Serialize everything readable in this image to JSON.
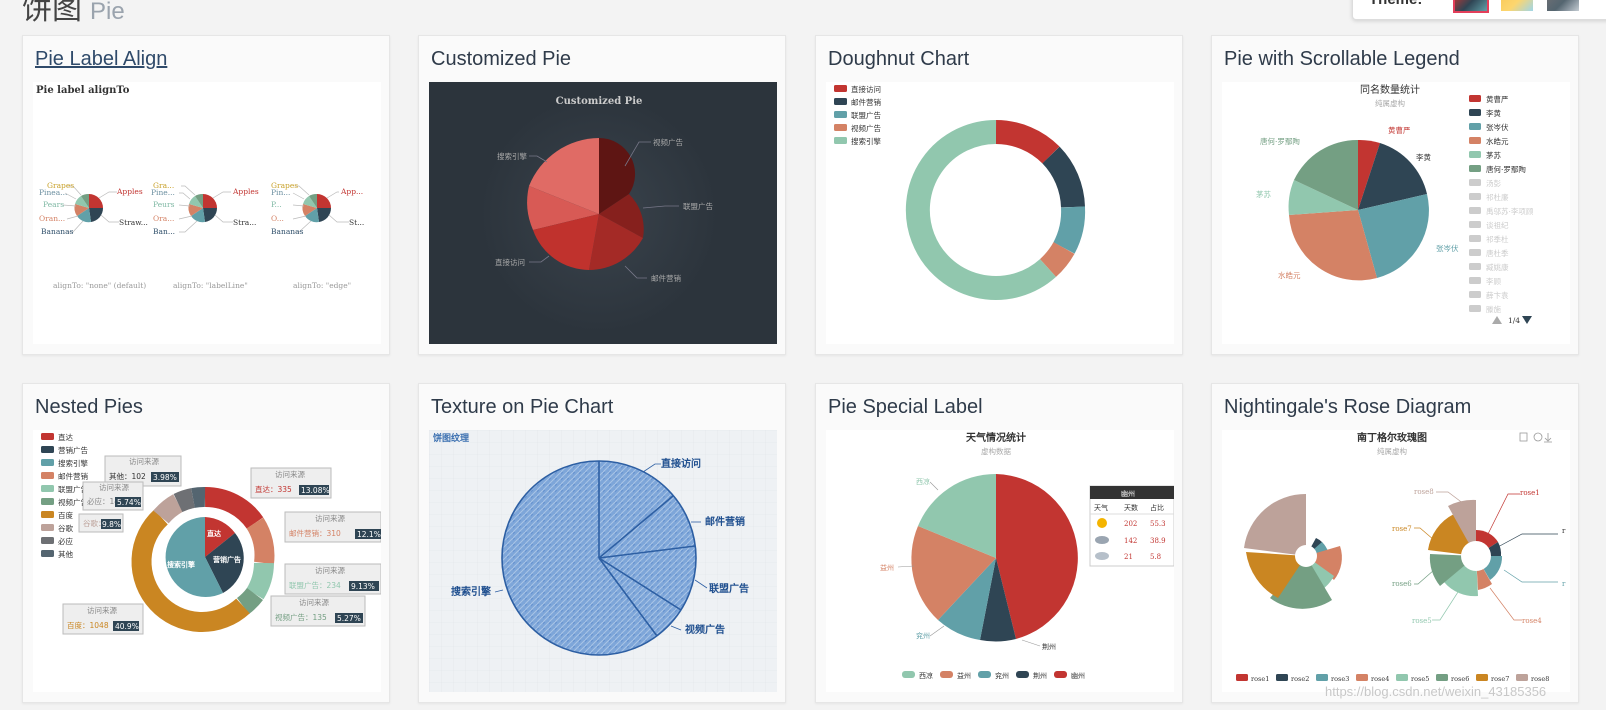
{
  "header": {
    "title_cn": "饼图",
    "title_en": "Pie"
  },
  "theme": {
    "label": "Theme:",
    "swatches": [
      "#2f4554",
      "#fac858",
      "#6e7074"
    ]
  },
  "cards": [
    {
      "title": "Pie Label Align",
      "thumb": {
        "title": "Pie label alignTo",
        "labels": [
          "Grapes",
          "Pinea...",
          "Pears",
          "Oran...",
          "Bananas",
          "Apples",
          "Straw...",
          "Gra...",
          "Pine...",
          "Peurs",
          "Ora...",
          "Ban...",
          "Apples",
          "Stra...",
          "Grapes",
          "Pin...",
          "P...",
          "O...",
          "Bananas",
          "App...",
          "St..."
        ],
        "captions": [
          "alignTo: \"none\" (default)",
          "alignTo: \"labelLine\"",
          "alignTo: \"edge\""
        ]
      }
    },
    {
      "title": "Customized Pie",
      "thumb": {
        "title": "Customized Pie",
        "labels": [
          "搜索引擎",
          "视频广告",
          "联盟广告",
          "直接访问",
          "邮件营销"
        ]
      }
    },
    {
      "title": "Doughnut Chart",
      "thumb": {
        "legend": [
          "直接访问",
          "邮件营销",
          "联盟广告",
          "视频广告",
          "搜索引擎"
        ]
      }
    },
    {
      "title": "Pie with Scrollable Legend",
      "thumb": {
        "title": "同名数量统计",
        "subtitle": "纯属虚构",
        "labels": [
          "黄曹严",
          "李黄",
          "张岑伏",
          "水皓元",
          "茅苏",
          "唐何·罗鄢陶"
        ],
        "legend": [
          "黄曹严",
          "李黄",
          "张岑伏",
          "水皓元",
          "茅苏",
          "唐何·罗鄢陶",
          "汤彭",
          "祁杜廉",
          "禹邬苏·李项顾",
          "谈祖纪",
          "祁季杜",
          "唐杜季",
          "臧姚康",
          "李顾",
          "薛卞袁",
          "滕施"
        ],
        "pager": "1/4"
      }
    },
    {
      "title": "Nested Pies",
      "thumb": {
        "legend": [
          "直达",
          "营销广告",
          "搜索引擎",
          "邮件营销",
          "联盟广告",
          "视频广告",
          "百度",
          "谷歌",
          "必应",
          "其他"
        ],
        "inner_labels": [
          "直达",
          "营销广告",
          "搜索引擎"
        ],
        "tips": [
          {
            "head": "访问来源",
            "text": "其他：102",
            "pct": "3.98%"
          },
          {
            "head": "访问来源",
            "text": "直达：335",
            "pct": "13.08%"
          },
          {
            "head": "访问来源",
            "text": "必应：147",
            "pct": "5.74%"
          },
          {
            "head": "访问来源",
            "text": "邮件营销：310",
            "pct": "12.1%"
          },
          {
            "head": "",
            "text": "谷歌：251",
            "pct": "9.8%"
          },
          {
            "head": "访问来源",
            "text": "联盟广告：234",
            "pct": "9.13%"
          },
          {
            "head": "访问来源",
            "text": "视频广告：135",
            "pct": "5.27%"
          },
          {
            "head": "访问来源",
            "text": "百度：1048",
            "pct": "40.9%"
          }
        ]
      }
    },
    {
      "title": "Texture on Pie Chart",
      "thumb": {
        "title": "饼图纹理",
        "labels": [
          "直接访问",
          "邮件营销",
          "联盟广告",
          "视频广告",
          "搜索引擎"
        ]
      }
    },
    {
      "title": "Pie Special Label",
      "thumb": {
        "title": "天气情况统计",
        "subtitle": "虚构数据",
        "labels": [
          "西凉",
          "益州",
          "兖州",
          "荆州"
        ],
        "table_title": "幽州",
        "table_head": [
          "天气",
          "天数",
          "占比"
        ],
        "table_rows": [
          [
            "202",
            "55.3"
          ],
          [
            "142",
            "38.9"
          ],
          [
            "21",
            "5.8"
          ]
        ],
        "legend": [
          "西凉",
          "益州",
          "兖州",
          "荆州",
          "幽州"
        ]
      }
    },
    {
      "title": "Nightingale's Rose Diagram",
      "thumb": {
        "title": "南丁格尔玫瑰图",
        "subtitle": "纯属虚构",
        "labels": [
          "rose8",
          "rose1",
          "rose7",
          "rose6",
          "rose5",
          "rose4",
          "r",
          "r"
        ],
        "legend": [
          "rose1",
          "rose2",
          "rose3",
          "rose4",
          "rose5",
          "rose6",
          "rose7",
          "rose8"
        ]
      }
    }
  ],
  "watermark": "https://blog.csdn.net/weixin_43185356"
}
